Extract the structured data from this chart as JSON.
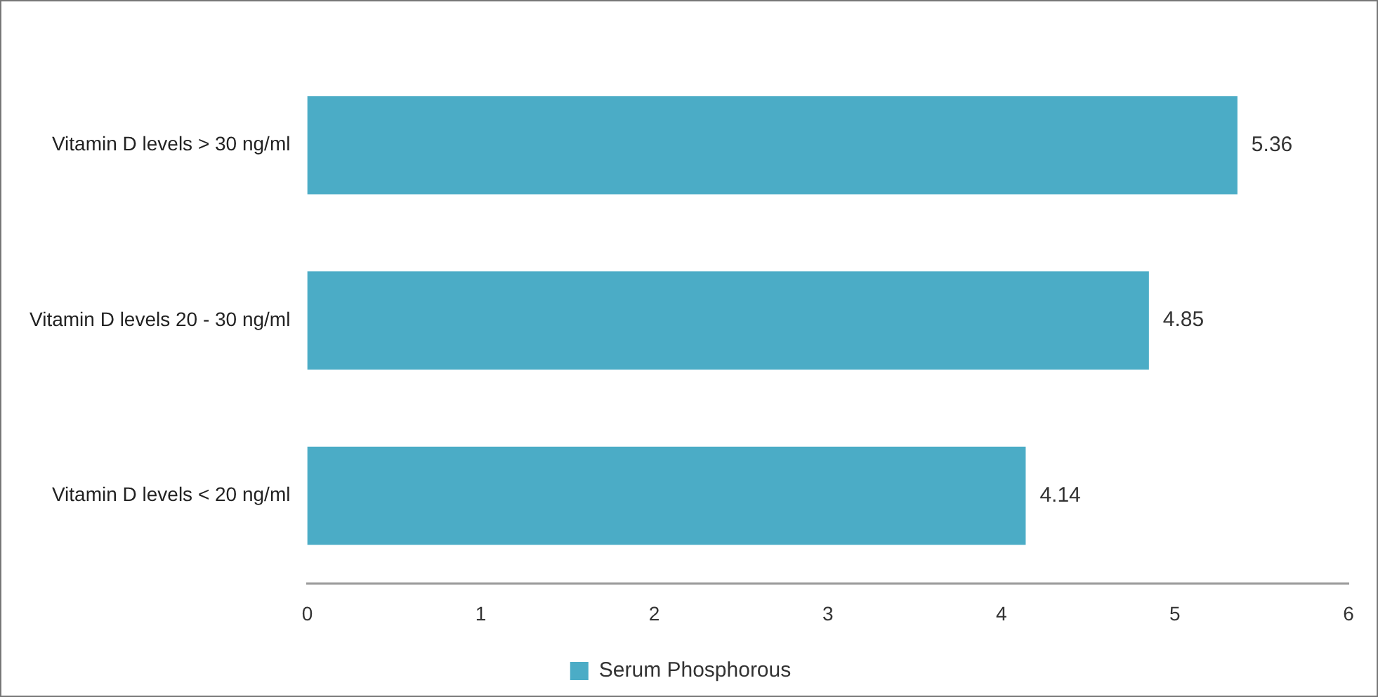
{
  "chart_data": {
    "type": "bar",
    "orientation": "horizontal",
    "categories": [
      "Vitamin D levels > 30 ng/ml",
      "Vitamin D levels 20 - 30 ng/ml",
      "Vitamin D levels < 20 ng/ml"
    ],
    "series": [
      {
        "name": "Serum Phosphorous",
        "color": "#4bacc6",
        "values": [
          5.36,
          4.85,
          4.14
        ]
      }
    ],
    "xlim": [
      0,
      6
    ],
    "xticks": [
      0,
      1,
      2,
      3,
      4,
      5,
      6
    ],
    "data_labels": true,
    "legend": "bottom"
  }
}
